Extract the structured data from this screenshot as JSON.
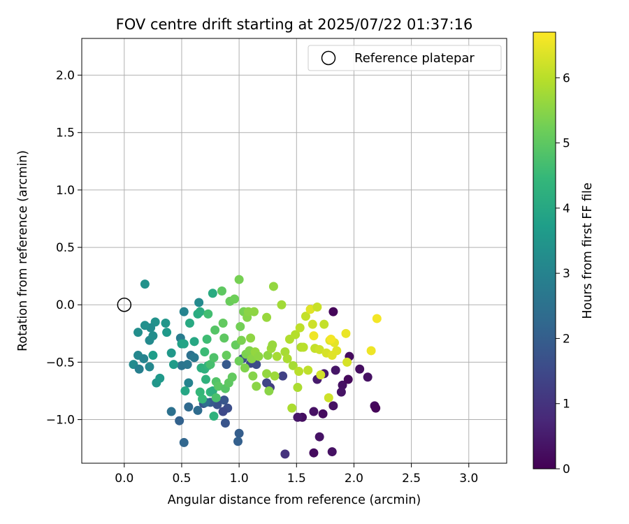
{
  "chart_data": {
    "type": "scatter",
    "title": "FOV centre drift starting at 2025/07/22 01:37:16",
    "xlabel": "Angular distance from reference (arcmin)",
    "ylabel": "Rotation from reference (arcmin)",
    "xlim": [
      -0.37,
      3.33
    ],
    "ylim": [
      -1.38,
      2.32
    ],
    "xticks": [
      0.0,
      0.5,
      1.0,
      1.5,
      2.0,
      2.5,
      3.0
    ],
    "xtick_labels": [
      "0.0",
      "0.5",
      "1.0",
      "1.5",
      "2.0",
      "2.5",
      "3.0"
    ],
    "yticks": [
      -1.0,
      -0.5,
      0.0,
      0.5,
      1.0,
      1.5,
      2.0
    ],
    "ytick_labels": [
      "−1.0",
      "−0.5",
      "0.0",
      "0.5",
      "1.0",
      "1.5",
      "2.0"
    ],
    "grid": true,
    "legend": {
      "position": "top-right",
      "entries": [
        "Reference platepar"
      ]
    },
    "reference_point": {
      "x": 0.0,
      "y": 0.0
    },
    "colorbar": {
      "label": "Hours from first FF file",
      "range": [
        0,
        6.7
      ],
      "ticks": [
        0,
        1,
        2,
        3,
        4,
        5,
        6
      ],
      "tick_labels": [
        "0",
        "1",
        "2",
        "3",
        "4",
        "5",
        "6"
      ],
      "colormap": "viridis"
    },
    "colormap_stops": [
      "#440154",
      "#482878",
      "#3e4989",
      "#31688e",
      "#26828e",
      "#1f9e89",
      "#35b779",
      "#6ece58",
      "#b5de2b",
      "#fde725"
    ],
    "points": [
      [
        1.82,
        -0.06,
        0.1
      ],
      [
        1.96,
        -0.45,
        0.2
      ],
      [
        1.9,
        -0.7,
        0.3
      ],
      [
        1.95,
        -0.65,
        0.15
      ],
      [
        2.05,
        -0.56,
        0.25
      ],
      [
        2.12,
        -0.63,
        0.3
      ],
      [
        2.18,
        -0.88,
        0.2
      ],
      [
        2.19,
        -0.9,
        0.1
      ],
      [
        1.89,
        -0.76,
        0.35
      ],
      [
        1.82,
        -0.88,
        0.3
      ],
      [
        1.84,
        -0.57,
        0.4
      ],
      [
        1.74,
        -0.6,
        0.45
      ],
      [
        1.68,
        -0.65,
        0.5
      ],
      [
        1.73,
        -0.95,
        0.2
      ],
      [
        1.65,
        -0.93,
        0.3
      ],
      [
        1.55,
        -0.98,
        0.25
      ],
      [
        1.51,
        -0.98,
        0.4
      ],
      [
        1.65,
        -1.29,
        0.2
      ],
      [
        1.81,
        -1.28,
        0.3
      ],
      [
        1.7,
        -1.15,
        0.35
      ],
      [
        1.4,
        -1.3,
        1.0
      ],
      [
        1.38,
        -0.62,
        1.3
      ],
      [
        1.27,
        -0.72,
        1.2
      ],
      [
        1.24,
        -0.68,
        1.4
      ],
      [
        1.1,
        -0.51,
        1.5
      ],
      [
        1.15,
        -0.52,
        1.55
      ],
      [
        1.03,
        -0.47,
        1.6
      ],
      [
        1.0,
        -1.12,
        2.0
      ],
      [
        0.99,
        -1.19,
        2.05
      ],
      [
        0.9,
        -0.9,
        1.6
      ],
      [
        0.86,
        -0.93,
        1.5
      ],
      [
        0.87,
        -0.83,
        1.8
      ],
      [
        0.81,
        -0.87,
        1.7
      ],
      [
        0.75,
        -0.85,
        1.9
      ],
      [
        0.69,
        -0.86,
        1.85
      ],
      [
        0.89,
        -0.52,
        1.9
      ],
      [
        0.88,
        -1.03,
        1.75
      ],
      [
        0.48,
        -1.01,
        2.1
      ],
      [
        0.52,
        -1.2,
        2.2
      ],
      [
        0.56,
        -0.89,
        2.3
      ],
      [
        0.41,
        -0.93,
        2.5
      ],
      [
        0.64,
        -0.92,
        2.35
      ],
      [
        0.71,
        -0.85,
        2.4
      ],
      [
        0.5,
        -0.53,
        2.6
      ],
      [
        0.49,
        -0.29,
        2.8
      ],
      [
        0.52,
        -0.06,
        3.0
      ],
      [
        0.55,
        -0.52,
        2.65
      ],
      [
        0.58,
        -0.44,
        2.5
      ],
      [
        0.61,
        -0.46,
        2.7
      ],
      [
        0.56,
        -0.68,
        3.0
      ],
      [
        0.65,
        0.02,
        3.2
      ],
      [
        0.18,
        0.18,
        3.4
      ],
      [
        0.08,
        -0.52,
        3.2
      ],
      [
        0.12,
        -0.44,
        3.1
      ],
      [
        0.13,
        -0.56,
        2.9
      ],
      [
        0.17,
        -0.47,
        3.0
      ],
      [
        0.22,
        -0.54,
        3.1
      ],
      [
        0.22,
        -0.31,
        3.2
      ],
      [
        0.25,
        -0.27,
        3.3
      ],
      [
        0.27,
        -0.15,
        3.4
      ],
      [
        0.23,
        -0.2,
        3.25
      ],
      [
        0.12,
        -0.24,
        3.3
      ],
      [
        0.18,
        -0.18,
        3.35
      ],
      [
        0.28,
        -0.68,
        3.5
      ],
      [
        0.31,
        -0.64,
        3.6
      ],
      [
        0.25,
        -0.44,
        3.7
      ],
      [
        0.37,
        -0.24,
        3.6
      ],
      [
        0.36,
        -0.16,
        3.5
      ],
      [
        0.41,
        -0.42,
        3.55
      ],
      [
        0.43,
        -0.52,
        3.65
      ],
      [
        0.5,
        -0.34,
        3.8
      ],
      [
        0.52,
        -0.34,
        3.9
      ],
      [
        0.53,
        -0.75,
        3.95
      ],
      [
        0.57,
        -0.16,
        4.05
      ],
      [
        0.61,
        -0.32,
        4.0
      ],
      [
        0.64,
        -0.08,
        4.1
      ],
      [
        0.66,
        -0.06,
        4.15
      ],
      [
        0.67,
        -0.55,
        4.2
      ],
      [
        0.7,
        -0.56,
        4.25
      ],
      [
        0.71,
        -0.65,
        4.3
      ],
      [
        0.73,
        -0.53,
        4.35
      ],
      [
        0.75,
        -0.76,
        4.4
      ],
      [
        0.77,
        -0.75,
        4.2
      ],
      [
        0.77,
        0.1,
        4.1
      ],
      [
        0.78,
        -0.97,
        4.3
      ],
      [
        0.66,
        -0.76,
        4.45
      ],
      [
        0.68,
        -0.82,
        4.5
      ],
      [
        0.72,
        -0.3,
        4.6
      ],
      [
        0.7,
        -0.41,
        4.55
      ],
      [
        0.73,
        -0.08,
        4.65
      ],
      [
        0.75,
        -0.52,
        4.7
      ],
      [
        0.78,
        -0.46,
        4.8
      ],
      [
        0.79,
        -0.22,
        4.9
      ],
      [
        0.8,
        -0.67,
        4.85
      ],
      [
        0.8,
        -0.81,
        4.75
      ],
      [
        0.82,
        -0.71,
        4.95
      ],
      [
        0.85,
        0.12,
        5.0
      ],
      [
        0.86,
        -0.16,
        5.05
      ],
      [
        0.87,
        -0.29,
        5.0
      ],
      [
        0.88,
        -0.73,
        4.9
      ],
      [
        0.89,
        -0.44,
        5.1
      ],
      [
        0.91,
        -0.68,
        5.0
      ],
      [
        0.92,
        0.03,
        5.15
      ],
      [
        0.94,
        -0.63,
        5.05
      ],
      [
        0.96,
        0.05,
        5.2
      ],
      [
        0.97,
        -0.35,
        5.1
      ],
      [
        1.0,
        0.22,
        5.3
      ],
      [
        1.0,
        -0.49,
        5.2
      ],
      [
        1.01,
        -0.19,
        5.25
      ],
      [
        1.02,
        -0.31,
        5.35
      ],
      [
        1.04,
        -0.06,
        5.3
      ],
      [
        1.05,
        -0.55,
        5.4
      ],
      [
        1.06,
        -0.43,
        5.35
      ],
      [
        1.07,
        -0.11,
        5.45
      ],
      [
        1.08,
        -0.06,
        5.5
      ],
      [
        1.09,
        -0.4,
        5.4
      ],
      [
        1.1,
        -0.29,
        5.55
      ],
      [
        1.11,
        -0.47,
        5.5
      ],
      [
        1.12,
        -0.62,
        5.45
      ],
      [
        1.13,
        -0.06,
        5.55
      ],
      [
        1.14,
        -0.41,
        5.6
      ],
      [
        1.15,
        -0.71,
        5.5
      ],
      [
        1.17,
        -0.45,
        5.55
      ],
      [
        1.24,
        -0.11,
        5.65
      ],
      [
        1.24,
        -0.6,
        5.6
      ],
      [
        1.25,
        -0.44,
        5.55
      ],
      [
        1.26,
        -0.75,
        5.5
      ],
      [
        1.28,
        -0.38,
        5.7
      ],
      [
        1.29,
        -0.35,
        5.65
      ],
      [
        1.3,
        0.16,
        5.6
      ],
      [
        1.31,
        -0.62,
        5.7
      ],
      [
        1.33,
        -0.45,
        5.8
      ],
      [
        1.37,
        0.0,
        5.75
      ],
      [
        1.4,
        -0.41,
        5.8
      ],
      [
        1.42,
        -0.47,
        5.85
      ],
      [
        1.44,
        -0.3,
        5.9
      ],
      [
        1.46,
        -0.9,
        5.85
      ],
      [
        1.47,
        -0.53,
        5.8
      ],
      [
        1.49,
        -0.26,
        5.95
      ],
      [
        1.51,
        -0.72,
        5.85
      ],
      [
        1.52,
        -0.58,
        6.0
      ],
      [
        1.53,
        -0.2,
        6.05
      ],
      [
        1.54,
        -0.37,
        5.9
      ],
      [
        1.56,
        -0.37,
        6.0
      ],
      [
        1.58,
        -0.1,
        6.1
      ],
      [
        1.6,
        -0.57,
        6.05
      ],
      [
        1.62,
        -0.04,
        6.4
      ],
      [
        1.64,
        -0.17,
        6.2
      ],
      [
        1.66,
        -0.38,
        6.1
      ],
      [
        1.68,
        -0.02,
        6.15
      ],
      [
        1.7,
        -0.39,
        6.2
      ],
      [
        1.71,
        -0.61,
        6.25
      ],
      [
        1.74,
        -0.17,
        6.1
      ],
      [
        1.76,
        -0.42,
        6.3
      ],
      [
        1.78,
        -0.81,
        6.2
      ],
      [
        1.79,
        -0.31,
        6.35
      ],
      [
        1.81,
        -0.44,
        6.4
      ],
      [
        1.83,
        -0.33,
        6.45
      ],
      [
        1.85,
        -0.4,
        6.4
      ],
      [
        1.93,
        -0.25,
        6.5
      ],
      [
        1.94,
        -0.5,
        6.3
      ],
      [
        2.15,
        -0.4,
        6.55
      ],
      [
        2.2,
        -0.12,
        6.6
      ],
      [
        1.8,
        -0.3,
        6.6
      ],
      [
        1.65,
        -0.27,
        6.55
      ]
    ]
  }
}
